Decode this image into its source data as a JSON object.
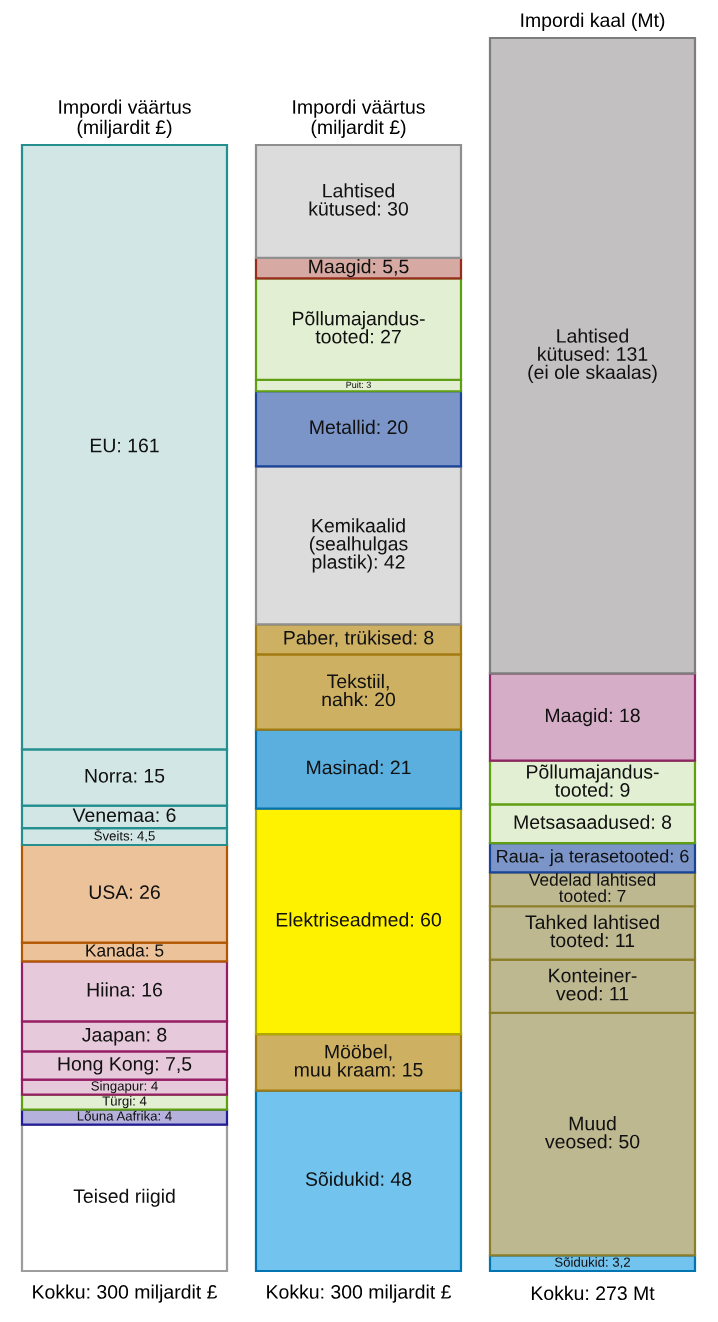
{
  "chart_data": [
    {
      "type": "bar",
      "stacked": true,
      "title": "Impordi väärtus\n(miljardit £)",
      "categories": [
        null
      ],
      "series": [
        {
          "color": "#ffffff",
          "values": [
            39
          ],
          "value_labels": [
            "Teised riigid"
          ]
        },
        {
          "color": "#b4b2dc",
          "values": [
            4
          ],
          "value_labels": [
            "Lõuna Aafrika: 4"
          ]
        },
        {
          "color": "#e2efd2",
          "values": [
            4
          ],
          "value_labels": [
            "Türgi: 4"
          ]
        },
        {
          "color": "#e6c9da",
          "values": [
            4
          ],
          "value_labels": [
            "Singapur: 4"
          ]
        },
        {
          "color": "#e6c9da",
          "values": [
            7.5
          ],
          "value_labels": [
            "Hong Kong: 7,5"
          ]
        },
        {
          "color": "#e6c9da",
          "values": [
            8
          ],
          "value_labels": [
            "Jaapan: 8"
          ]
        },
        {
          "color": "#e6c9da",
          "values": [
            16
          ],
          "value_labels": [
            "Hiina: 16"
          ]
        },
        {
          "color": "#ecc29a",
          "values": [
            5
          ],
          "value_labels": [
            "Kanada: 5"
          ]
        },
        {
          "color": "#ecc29a",
          "values": [
            26
          ],
          "value_labels": [
            "USA: 26"
          ]
        },
        {
          "color": "#d2e6e6",
          "values": [
            4.5
          ],
          "value_labels": [
            "Šveits: 4,5"
          ]
        },
        {
          "color": "#d2e6e6",
          "values": [
            6
          ],
          "value_labels": [
            "Venemaa: 6"
          ]
        },
        {
          "color": "#d2e6e6",
          "values": [
            15
          ],
          "value_labels": [
            "Norra: 15"
          ]
        },
        {
          "color": "#d2e6e6",
          "values": [
            161
          ],
          "value_labels": [
            "EU: 161"
          ]
        }
      ],
      "annotations": [
        "Kokku: 300 miljardit £"
      ]
    },
    {
      "type": "bar",
      "stacked": true,
      "title": "Impordi väärtus\n(miljardit £)",
      "categories": [
        null
      ],
      "series": [
        {
          "color": "#72c3ee",
          "values": [
            48
          ],
          "value_labels": [
            "Sõidukid: 48"
          ]
        },
        {
          "color": "#cdb062",
          "values": [
            15
          ],
          "value_labels": [
            "Mööbel,\nmuu kraam: 15"
          ]
        },
        {
          "color": "#fff200",
          "values": [
            60
          ],
          "value_labels": [
            "Elektriseadmed: 60"
          ]
        },
        {
          "color": "#5aafdf",
          "values": [
            21
          ],
          "value_labels": [
            "Masinad: 21"
          ]
        },
        {
          "color": "#cdb062",
          "values": [
            20
          ],
          "value_labels": [
            "Tekstiil,\nnahk: 20"
          ]
        },
        {
          "color": "#cdb062",
          "values": [
            8
          ],
          "value_labels": [
            "Paber, trükised: 8"
          ]
        },
        {
          "color": "#dcdcdc",
          "values": [
            42
          ],
          "value_labels": [
            "Kemikaalid\n(sealhulgas\nplastik): 42"
          ]
        },
        {
          "color": "#7b95c9",
          "values": [
            20
          ],
          "value_labels": [
            "Metallid: 20"
          ]
        },
        {
          "color": "#e2efd2",
          "values": [
            3
          ],
          "value_labels": [
            "Puit: 3"
          ]
        },
        {
          "color": "#e2efd2",
          "values": [
            27
          ],
          "value_labels": [
            "Põllumajandus-\ntooted: 27"
          ]
        },
        {
          "color": "#d6a9a2",
          "values": [
            5.5
          ],
          "value_labels": [
            "Maagid: 5,5"
          ]
        },
        {
          "color": "#dcdcdc",
          "values": [
            30
          ],
          "value_labels": [
            "Lahtised\nkütused: 30"
          ]
        }
      ],
      "annotations": [
        "Kokku: 300 miljardit £"
      ]
    },
    {
      "type": "bar",
      "stacked": true,
      "title": "Impordi kaal (Mt)",
      "categories": [
        null
      ],
      "series": [
        {
          "color": "#72c3ee",
          "values": [
            3.2
          ],
          "value_labels": [
            "Sõidukid: 3,2"
          ]
        },
        {
          "color": "#beb891",
          "values": [
            50
          ],
          "value_labels": [
            "Muud\nveosed: 50"
          ]
        },
        {
          "color": "#beb891",
          "values": [
            11
          ],
          "value_labels": [
            "Konteiner-\nveod: 11"
          ]
        },
        {
          "color": "#beb891",
          "values": [
            11
          ],
          "value_labels": [
            "Tahked lahtised\ntooted: 11"
          ]
        },
        {
          "color": "#beb891",
          "values": [
            7
          ],
          "value_labels": [
            "Vedelad lahtised\ntooted: 7"
          ]
        },
        {
          "color": "#7b95c9",
          "values": [
            6
          ],
          "value_labels": [
            "Raua- ja terasetooted: 6"
          ]
        },
        {
          "color": "#e2efd2",
          "values": [
            8
          ],
          "value_labels": [
            "Metsasaadused: 8"
          ]
        },
        {
          "color": "#e2efd2",
          "values": [
            9
          ],
          "value_labels": [
            "Põllumajandus-\ntooted: 9"
          ]
        },
        {
          "color": "#d5adc6",
          "values": [
            18
          ],
          "value_labels": [
            "Maagid: 18"
          ]
        },
        {
          "color": "#c2c0c0",
          "values": [
            131
          ],
          "value_labels": [
            "Lahtised\nkütused: 131\n(ei ole skaalas)"
          ]
        }
      ],
      "annotations": [
        "Kokku: 273 Mt"
      ]
    }
  ]
}
